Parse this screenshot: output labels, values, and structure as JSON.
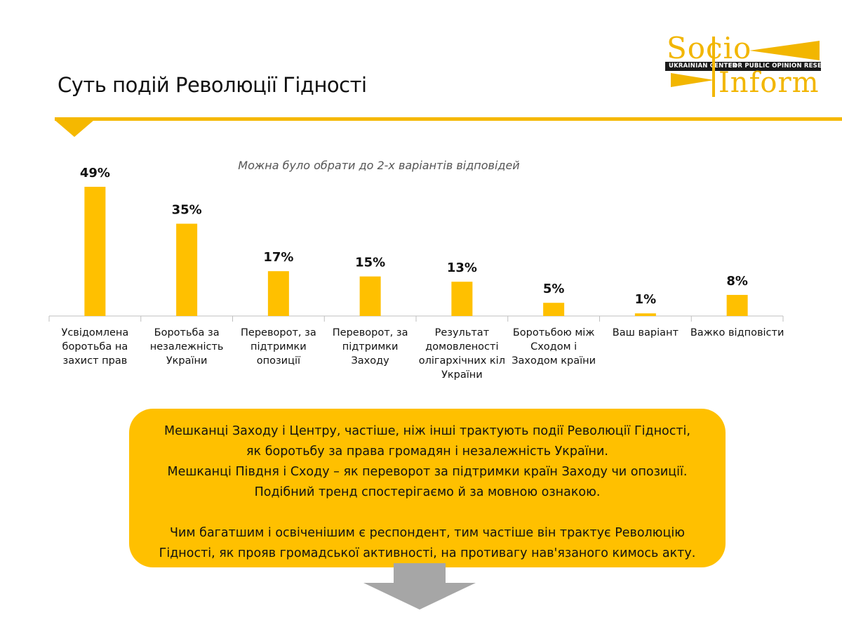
{
  "header": {
    "title": "Суть подій Революції Гідності"
  },
  "logo": {
    "word1": "Socio",
    "word2": "Inform",
    "band_left": "UKRAINIAN CENTER",
    "band_right": "FOR PUBLIC OPINION RESEARCH",
    "color": "#f2b600"
  },
  "chart_data": {
    "type": "bar",
    "title": "",
    "subtitle": "Можна було обрати до 2-х варіантів відповідей",
    "xlabel": "",
    "ylabel": "",
    "ylim": [
      0,
      49
    ],
    "grid": false,
    "legend": "none",
    "bar_color": "#ffc000",
    "categories": [
      "Усвідомлена боротьба на захист прав",
      "Боротьба за незалежність України",
      "Переворот, за підтримки опозиції",
      "Переворот, за підтримки Заходу",
      "Результат домовленості олігархічних кіл України",
      "Боротьбою між Сходом і Заходом країни",
      "Ваш варіант",
      "Важко відповісти"
    ],
    "category_lines": [
      [
        "Усвідомлена",
        "боротьба на",
        "захист прав"
      ],
      [
        "Боротьба за",
        "незалежність",
        "України"
      ],
      [
        "Переворот, за",
        "підтримки",
        "опозиції"
      ],
      [
        "Переворот, за",
        "підтримки",
        "Заходу"
      ],
      [
        "Результат",
        "домовленості",
        "олігархічних кіл",
        "України"
      ],
      [
        "Боротьбою між",
        "Сходом і",
        "Заходом країни"
      ],
      [
        "Ваш варіант"
      ],
      [
        "Важко відповісти"
      ]
    ],
    "values": [
      49,
      35,
      17,
      15,
      13,
      5,
      1,
      8
    ],
    "value_labels": [
      "49%",
      "35%",
      "17%",
      "15%",
      "13%",
      "5%",
      "1%",
      "8%"
    ]
  },
  "callout": {
    "color": "#ffc000",
    "lines": [
      "Мешканці Заходу і Центру, частіше, ніж  інші трактують події Революції Гідності,",
      "як боротьбу за права громадян і незалежність України.",
      "Мешканці Півдня  і Сходу – як переворот за підтримки країн Заходу чи опозиції.",
      "Подібний тренд спостерігаємо й за мовною ознакою."
    ],
    "lines2": [
      "Чим багатшим і освіченішим є респондент, тим частіше він трактує Революцію",
      "Гідності, як прояв громадської активності, на противагу нав'язаного кимось акту."
    ]
  }
}
